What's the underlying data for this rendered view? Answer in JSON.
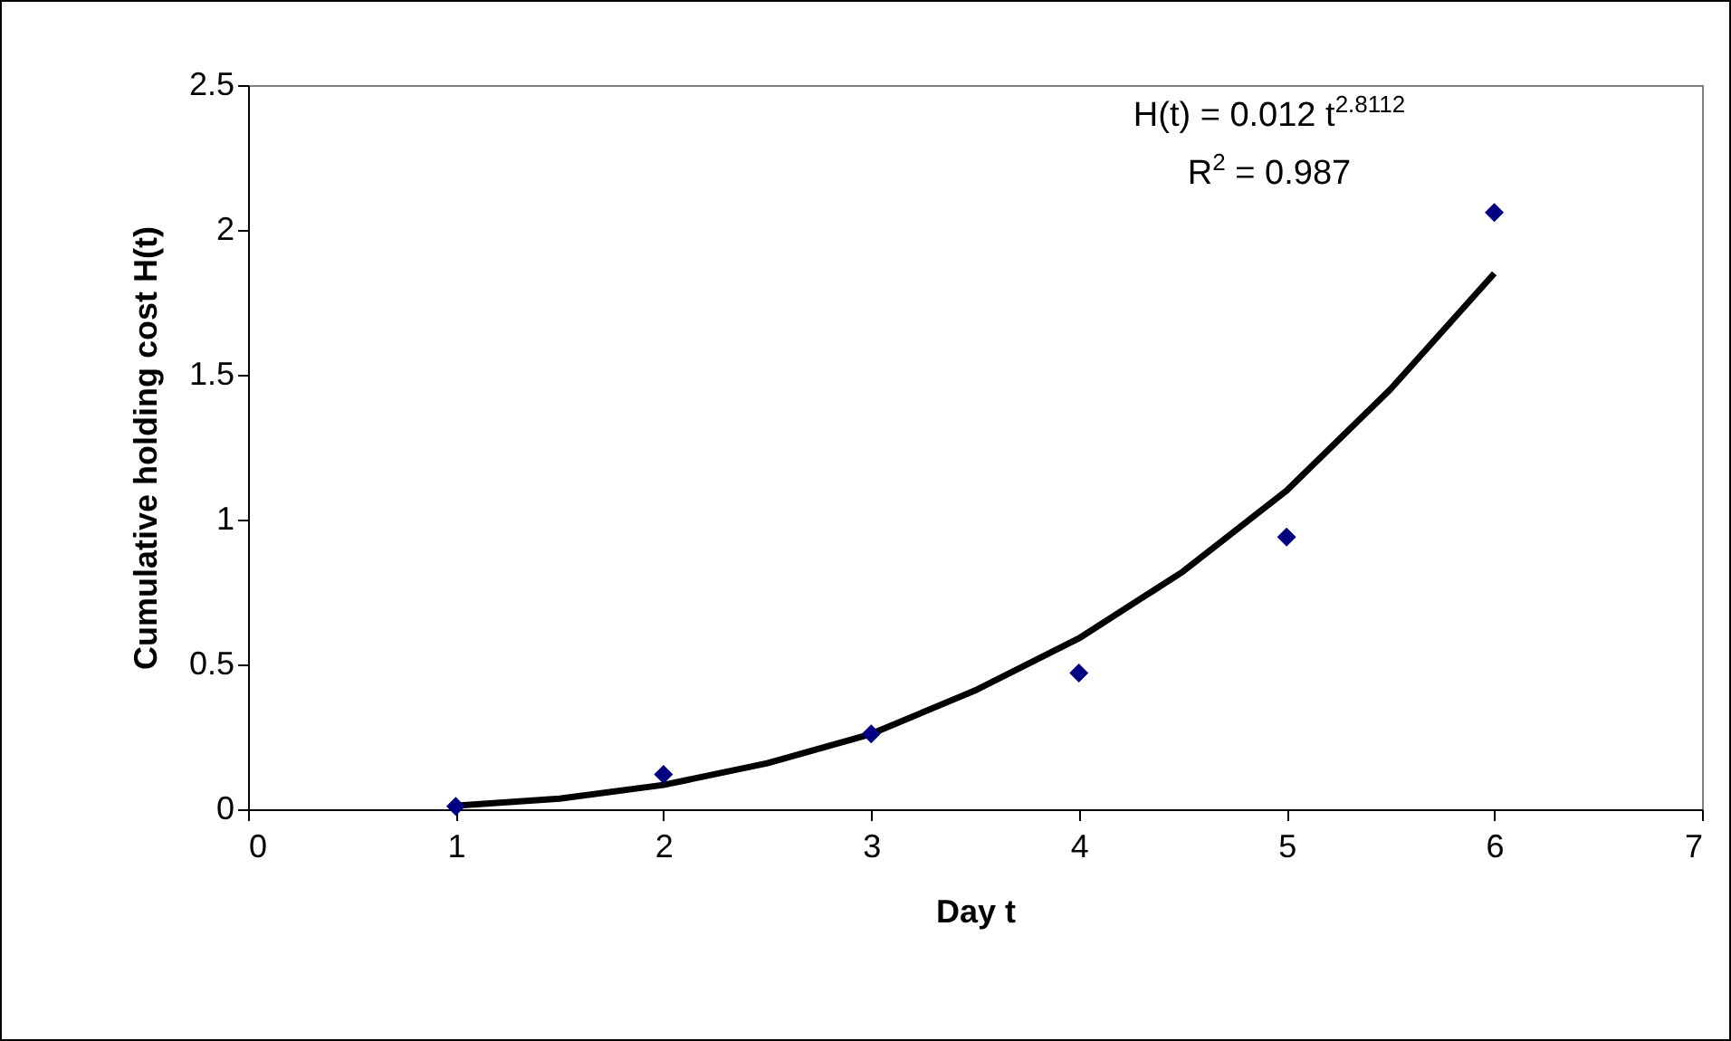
{
  "chart_data": {
    "type": "scatter",
    "xlabel": "Day t",
    "ylabel": "Cumulative holding cost H(t)",
    "x": [
      1,
      2,
      3,
      4,
      5,
      6
    ],
    "series": [
      {
        "color": "#000080",
        "marker": "diamond",
        "values": [
          0.01,
          0.12,
          0.26,
          0.47,
          0.94,
          2.06
        ]
      },
      {
        "type": "line",
        "color": "#000000",
        "marker": "none",
        "x": [
          1,
          1.5,
          2,
          2.5,
          3,
          3.5,
          4,
          4.5,
          5,
          5.5,
          6
        ],
        "values": [
          0.012,
          0.037,
          0.084,
          0.159,
          0.26,
          0.41,
          0.59,
          0.82,
          1.1,
          1.45,
          1.85
        ]
      }
    ],
    "annotations": [
      "H(t) = 0.012 t$^{2.8112}$",
      "R$^{2}$ = 0.987"
    ],
    "xlim": [
      0,
      7
    ],
    "xticks": [
      0,
      1,
      2,
      3,
      4,
      5,
      6,
      7
    ],
    "ylim": [
      0,
      2.5
    ],
    "yticks": [
      0,
      0.5,
      1,
      1.5,
      2,
      2.5
    ],
    "grid": false,
    "legend": false
  }
}
